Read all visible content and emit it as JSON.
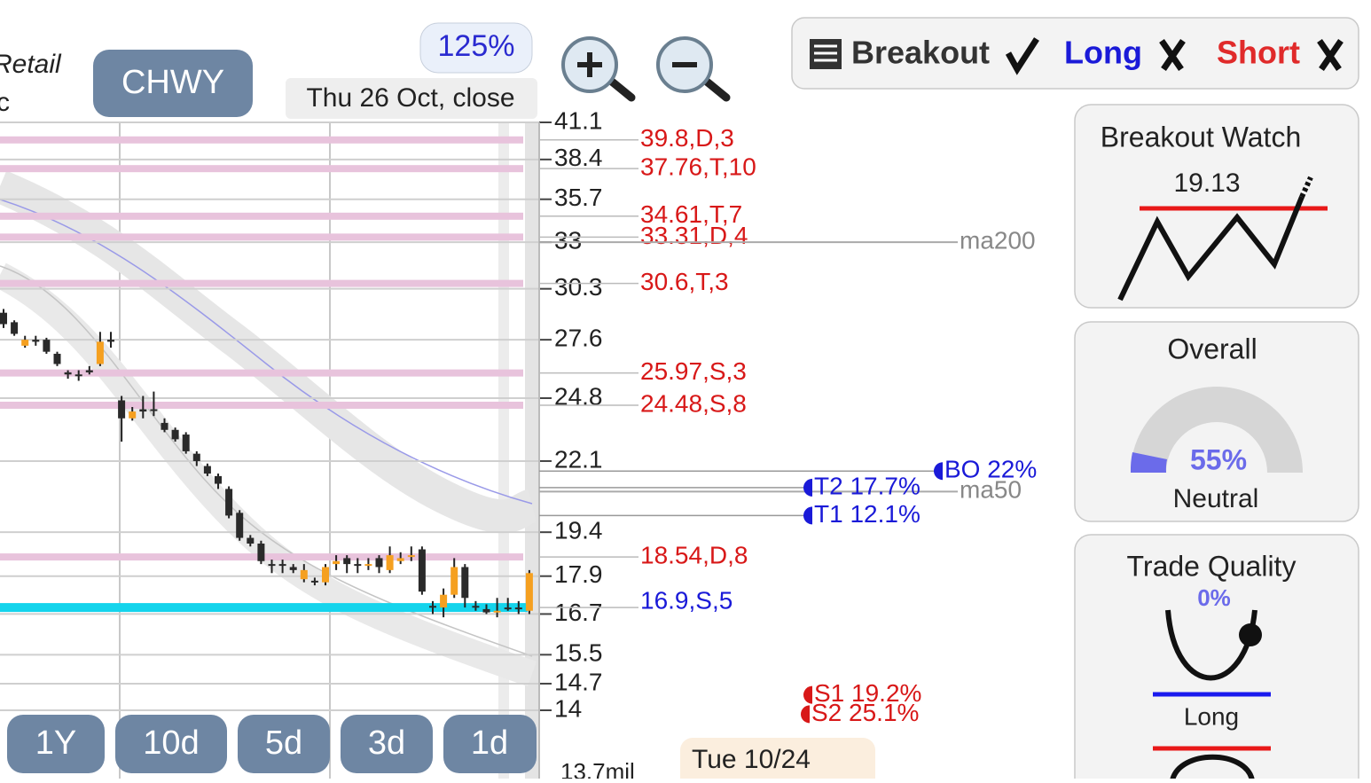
{
  "header": {
    "sector": "Retail",
    "sector_cut": "c",
    "ticker": "CHWY",
    "zoom": "125%",
    "date": "Thu 26 Oct, close"
  },
  "signals": {
    "breakout": "Breakout",
    "long": "Long",
    "short": "Short"
  },
  "panels": {
    "breakout_watch": {
      "title": "Breakout Watch",
      "price": "19.13"
    },
    "overall": {
      "title": "Overall",
      "score": "55%",
      "rating": "Neutral"
    },
    "trade_quality": {
      "title": "Trade Quality",
      "score": "0%",
      "direction": "Long"
    }
  },
  "timeframes": [
    "1Y",
    "10d",
    "5d",
    "3d",
    "1d"
  ],
  "volume_label": "13.7mil",
  "tooltip": "Tue 10/24",
  "chart_data": {
    "type": "candlestick",
    "log_y": true,
    "grid": true,
    "ylim": [
      14,
      41.1
    ],
    "yticks": [
      41.1,
      38.4,
      35.7,
      33,
      30.3,
      27.6,
      24.8,
      22.1,
      19.4,
      17.9,
      16.7,
      15.5,
      14.7,
      14
    ],
    "up_color": "#f5a020",
    "down_color": "#2a2a2a",
    "categories": [
      null,
      null,
      null,
      null,
      null,
      null,
      null,
      null,
      null,
      null,
      null,
      null,
      null,
      null,
      null,
      null,
      null,
      null,
      null,
      null,
      null,
      null,
      null,
      null,
      null,
      null,
      null,
      null,
      null,
      null,
      null,
      null,
      null,
      null,
      null,
      null,
      null,
      null,
      null,
      null,
      null,
      null,
      null,
      null,
      null,
      null,
      null,
      null,
      null,
      null
    ],
    "open": [
      29.0,
      28.5,
      27.3,
      27.6,
      27.6,
      26.9,
      26.0,
      25.9,
      26.1,
      26.4,
      27.6,
      24.7,
      23.9,
      24.3,
      24.3,
      23.7,
      23.4,
      23.2,
      22.4,
      21.9,
      21.5,
      21.0,
      20.1,
      19.2,
      19.0,
      18.3,
      18.3,
      18.2,
      17.8,
      17.75,
      17.7,
      18.3,
      18.5,
      18.3,
      18.3,
      18.5,
      18.1,
      18.4,
      18.6,
      18.8,
      16.95,
      16.9,
      17.3,
      18.2,
      16.95,
      16.85,
      16.75,
      16.9,
      16.9,
      16.8
    ],
    "high": [
      29.2,
      28.6,
      27.8,
      27.8,
      27.7,
      27.0,
      26.1,
      26.1,
      26.3,
      28.0,
      28.0,
      24.9,
      24.4,
      24.9,
      25.1,
      23.9,
      23.5,
      23.3,
      22.5,
      22.0,
      21.6,
      21.1,
      20.2,
      19.3,
      19.1,
      18.45,
      18.45,
      18.3,
      18.3,
      17.85,
      18.3,
      18.6,
      18.6,
      18.5,
      18.5,
      18.6,
      18.9,
      18.7,
      18.9,
      18.9,
      17.1,
      17.5,
      18.5,
      18.3,
      17.1,
      17.0,
      17.2,
      17.2,
      17.1,
      18.1
    ],
    "low": [
      28.2,
      27.8,
      27.2,
      27.3,
      26.9,
      26.3,
      25.7,
      25.6,
      25.9,
      26.3,
      27.2,
      22.9,
      23.8,
      23.9,
      24.0,
      23.3,
      22.9,
      22.4,
      21.9,
      21.5,
      21.0,
      19.9,
      19.1,
      18.9,
      18.3,
      18.0,
      18.0,
      18.0,
      17.7,
      17.6,
      17.6,
      18.1,
      18.0,
      18.0,
      18.1,
      18.0,
      18.0,
      18.3,
      18.4,
      17.3,
      16.7,
      16.6,
      17.2,
      16.9,
      16.8,
      16.7,
      16.6,
      16.8,
      16.7,
      16.7
    ],
    "close": [
      28.4,
      27.9,
      27.6,
      27.5,
      27.0,
      26.4,
      25.9,
      25.85,
      26.0,
      27.5,
      27.5,
      23.9,
      24.2,
      24.2,
      24.25,
      23.4,
      23.0,
      22.5,
      22.1,
      21.6,
      21.2,
      20.0,
      19.2,
      19.0,
      18.4,
      18.25,
      18.25,
      18.1,
      18.1,
      17.7,
      18.2,
      18.4,
      18.3,
      18.25,
      18.3,
      18.2,
      18.6,
      18.5,
      18.6,
      17.4,
      16.9,
      17.3,
      18.2,
      17.2,
      16.9,
      16.75,
      16.8,
      16.85,
      16.85,
      18.0
    ],
    "levels": [
      {
        "value": 39.8,
        "label": "39.8,D,3"
      },
      {
        "value": 37.76,
        "label": "37.76,T,10"
      },
      {
        "value": 34.61,
        "label": "34.61,T,7"
      },
      {
        "value": 33.31,
        "label": "33.31,D,4"
      },
      {
        "value": 30.6,
        "label": "30.6,T,3"
      },
      {
        "value": 25.97,
        "label": "25.97,S,3"
      },
      {
        "value": 24.48,
        "label": "24.48,S,8"
      },
      {
        "value": 18.54,
        "label": "18.54,D,8"
      }
    ],
    "level_color": "#e8c3dc",
    "level_text_color": "#d81818",
    "support": {
      "value": 16.9,
      "label": "16.9,S,5",
      "color": "#14d4ec",
      "text_color": "#1a1ad8"
    },
    "targets": [
      {
        "label": "BO 22%",
        "price": 21.7,
        "color": "#1a1ad8"
      },
      {
        "label": "T2 17.7%",
        "price": 21.05,
        "color": "#1a1ad8"
      },
      {
        "label": "T1 12.1%",
        "price": 20.0,
        "color": "#1a1ad8"
      },
      {
        "label": "S1 19.2%",
        "price": 14.4,
        "color": "#d81818"
      },
      {
        "label": "S2 25.1%",
        "price": 13.9,
        "color": "#d81818"
      }
    ],
    "moving_averages": [
      {
        "name": "ma200",
        "value": 33
      },
      {
        "name": "ma50",
        "value": 20.9
      }
    ]
  }
}
